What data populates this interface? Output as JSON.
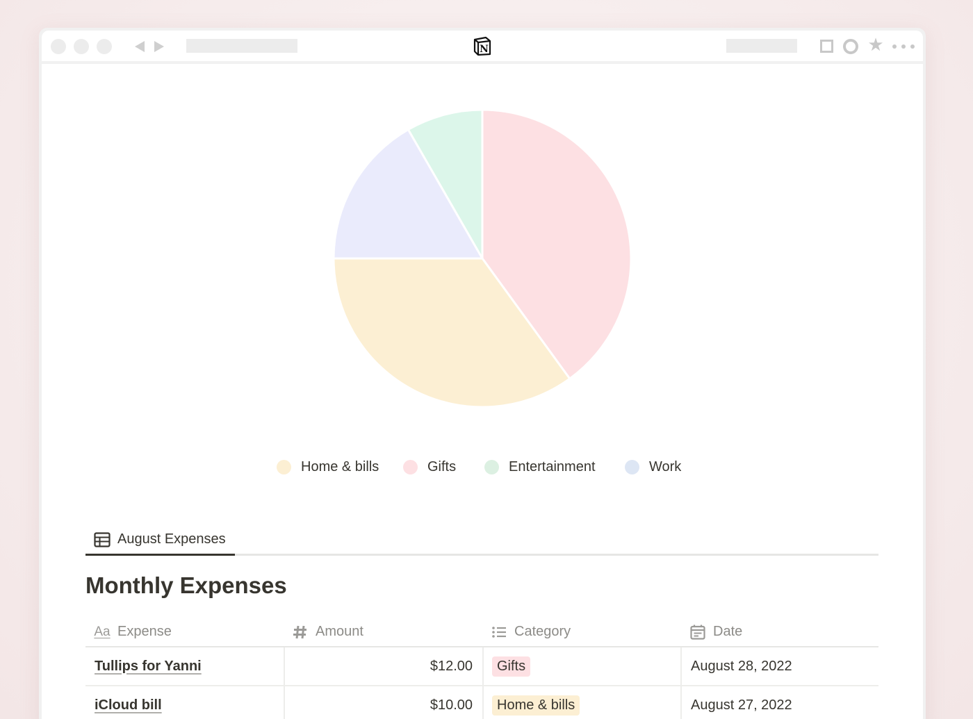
{
  "browser": {
    "logo_letter": "N"
  },
  "colors": {
    "home_bills": "#fcefd3",
    "gifts": "#fde0e3",
    "entertainment": "#dcf6ea",
    "work": "#eaebfc",
    "legend_home": "#fcefd3",
    "legend_gifts": "#fde0e3",
    "legend_entertainment": "#dcf0e2",
    "legend_work": "#dde6f4",
    "tag_gifts_bg": "#fde0e3",
    "tag_home_bg": "#fcefd3"
  },
  "chart_data": {
    "type": "pie",
    "categories": [
      "Gifts",
      "Home & bills",
      "Work",
      "Entertainment"
    ],
    "values": [
      40,
      35,
      16.7,
      8.3
    ],
    "legend": [
      "Home & bills",
      "Gifts",
      "Entertainment",
      "Work"
    ],
    "legend_position": "bottom"
  },
  "tab": {
    "label": "August Expenses"
  },
  "page": {
    "title": "Monthly Expenses"
  },
  "table": {
    "headers": {
      "expense": "Expense",
      "amount": "Amount",
      "category": "Category",
      "date": "Date"
    },
    "header_icon_expense_text": "Aa",
    "rows": [
      {
        "expense": "Tullips for Yanni",
        "amount": "$12.00",
        "category": "Gifts",
        "date": "August 28, 2022"
      },
      {
        "expense": "iCloud bill",
        "amount": "$10.00",
        "category": "Home & bills",
        "date": "August 27, 2022"
      }
    ]
  }
}
